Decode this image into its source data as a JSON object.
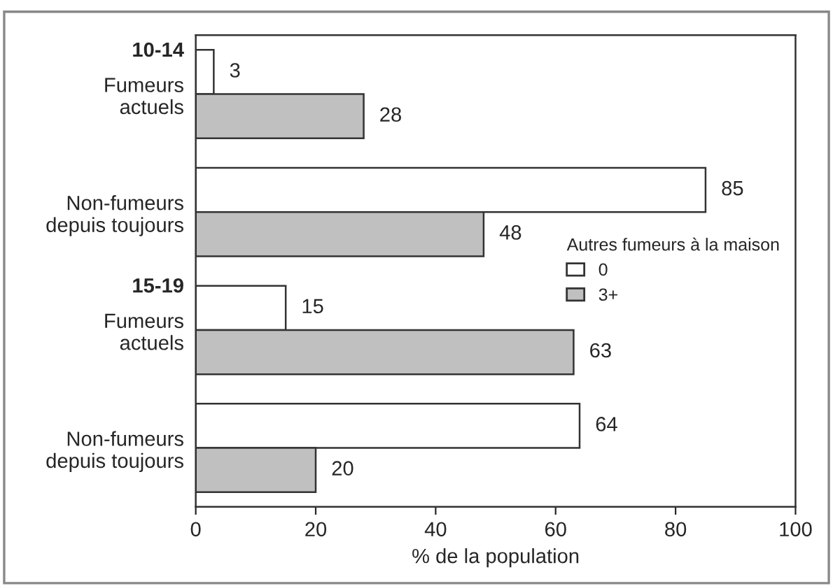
{
  "chart_data": {
    "type": "bar",
    "orientation": "horizontal",
    "categories": [
      "Fumeurs\nactuels",
      "Non-fumeurs\ndepuis toujours",
      "Fumeurs\nactuels",
      "Non-fumeurs\ndepuis toujours"
    ],
    "series": [
      {
        "name": "0",
        "color": "#ffffff",
        "values": [
          3,
          85,
          15,
          64
        ]
      },
      {
        "name": "3+",
        "color": "#c0c0c0",
        "values": [
          28,
          48,
          63,
          20
        ]
      }
    ],
    "legend_title": "Autres fumeurs à la maison",
    "legend": "right",
    "xlabel": "% de la population",
    "xlim": [
      0,
      100
    ],
    "xticks": [
      0,
      20,
      40,
      60,
      80,
      100
    ],
    "data_labels": true,
    "grid": false,
    "annotations": [
      "10-14",
      "15-19"
    ]
  }
}
